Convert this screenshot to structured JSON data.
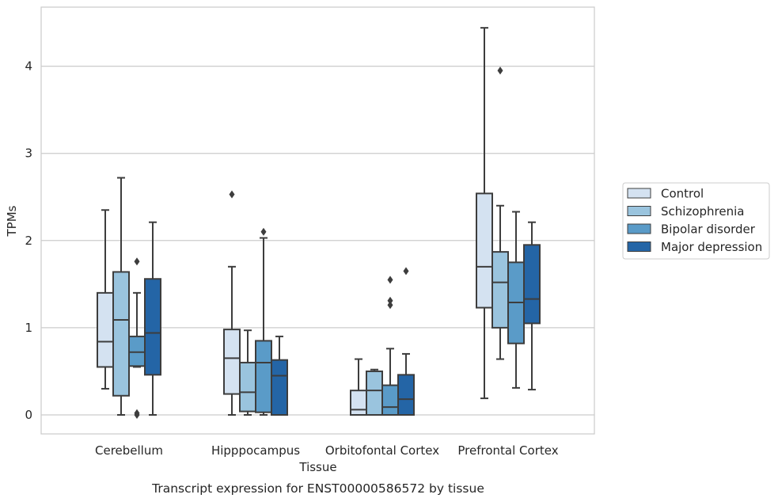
{
  "chart_data": {
    "type": "boxplot",
    "title": "",
    "caption": "Transcript expression for ENST00000586572 by tissue",
    "xlabel": "Tissue",
    "ylabel": "TPMs",
    "ylim": [
      -0.2,
      4.68
    ],
    "yticks": [
      0,
      1,
      2,
      3,
      4
    ],
    "grid": true,
    "legend_position": "right",
    "categories": [
      "Cerebellum",
      "Hipppocampus",
      "Orbitofontal Cortex",
      "Prefrontal Cortex"
    ],
    "series": [
      {
        "name": "Control",
        "color": "#d4e2f1",
        "boxes": [
          {
            "whislo": 0.3,
            "q1": 0.55,
            "med": 0.84,
            "q3": 1.4,
            "whishi": 2.35,
            "fliers": []
          },
          {
            "whislo": 0.0,
            "q1": 0.24,
            "med": 0.65,
            "q3": 0.98,
            "whishi": 1.7,
            "fliers": [
              2.53
            ]
          },
          {
            "whislo": 0.0,
            "q1": 0.0,
            "med": 0.06,
            "q3": 0.28,
            "whishi": 0.64,
            "fliers": []
          },
          {
            "whislo": 0.19,
            "q1": 1.23,
            "med": 1.7,
            "q3": 2.54,
            "whishi": 4.44,
            "fliers": []
          }
        ]
      },
      {
        "name": "Schizophrenia",
        "color": "#9ac4de",
        "boxes": [
          {
            "whislo": 0.0,
            "q1": 0.22,
            "med": 1.09,
            "q3": 1.64,
            "whishi": 2.72,
            "fliers": []
          },
          {
            "whislo": 0.0,
            "q1": 0.04,
            "med": 0.26,
            "q3": 0.6,
            "whishi": 0.97,
            "fliers": []
          },
          {
            "whislo": 0.0,
            "q1": 0.0,
            "med": 0.28,
            "q3": 0.5,
            "whishi": 0.52,
            "fliers": []
          },
          {
            "whislo": 0.64,
            "q1": 1.0,
            "med": 1.52,
            "q3": 1.87,
            "whishi": 2.4,
            "fliers": [
              3.95
            ]
          }
        ]
      },
      {
        "name": "Bipolar disorder",
        "color": "#5a9bc8",
        "boxes": [
          {
            "whislo": 0.55,
            "q1": 0.56,
            "med": 0.72,
            "q3": 0.9,
            "whishi": 1.4,
            "fliers": [
              1.76,
              0.02,
              0.0
            ]
          },
          {
            "whislo": 0.0,
            "q1": 0.03,
            "med": 0.6,
            "q3": 0.85,
            "whishi": 2.03,
            "fliers": [
              2.1
            ]
          },
          {
            "whislo": 0.0,
            "q1": 0.0,
            "med": 0.09,
            "q3": 0.34,
            "whishi": 0.76,
            "fliers": [
              1.55,
              1.31,
              1.26
            ]
          },
          {
            "whislo": 0.31,
            "q1": 0.82,
            "med": 1.29,
            "q3": 1.75,
            "whishi": 2.33,
            "fliers": []
          }
        ]
      },
      {
        "name": "Major depression",
        "color": "#2465a6",
        "boxes": [
          {
            "whislo": 0.0,
            "q1": 0.46,
            "med": 0.94,
            "q3": 1.56,
            "whishi": 2.21,
            "fliers": []
          },
          {
            "whislo": 0.0,
            "q1": 0.0,
            "med": 0.45,
            "q3": 0.63,
            "whishi": 0.9,
            "fliers": []
          },
          {
            "whislo": 0.0,
            "q1": 0.0,
            "med": 0.18,
            "q3": 0.46,
            "whishi": 0.7,
            "fliers": [
              1.65
            ]
          },
          {
            "whislo": 0.29,
            "q1": 1.05,
            "med": 1.33,
            "q3": 1.95,
            "whishi": 2.21,
            "fliers": []
          }
        ]
      }
    ]
  }
}
